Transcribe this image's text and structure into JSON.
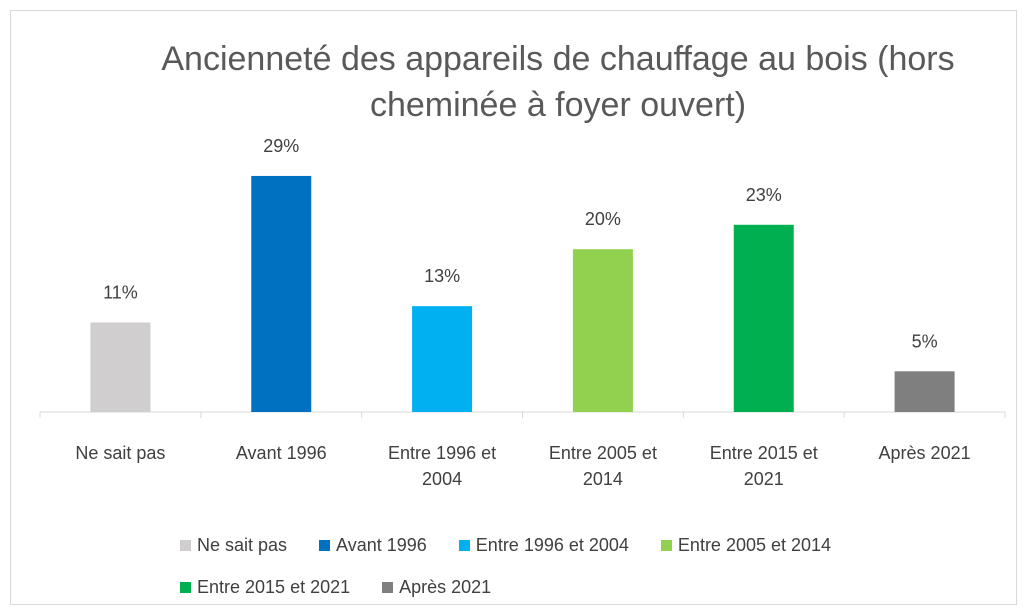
{
  "chart_data": {
    "type": "bar",
    "title": "Ancienneté des appareils de chauffage au bois (hors cheminée à foyer ouvert)",
    "categories": [
      "Ne sait pas",
      "Avant 1996",
      "Entre 1996 et 2004",
      "Entre 2005 et 2014",
      "Entre 2015 et 2021",
      "Après 2021"
    ],
    "values": [
      11,
      29,
      13,
      20,
      23,
      5
    ],
    "value_labels": [
      "11%",
      "29%",
      "13%",
      "20%",
      "23%",
      "5%"
    ],
    "colors": [
      "#d0cece",
      "#0070c0",
      "#00b0f0",
      "#92d050",
      "#00b050",
      "#7f7f7f"
    ]
  }
}
